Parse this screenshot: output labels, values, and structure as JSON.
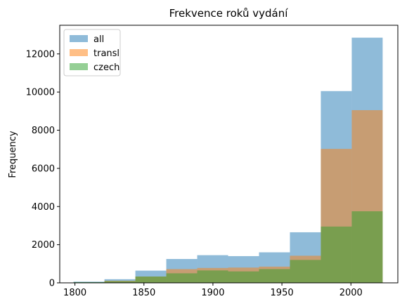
{
  "chart_data": {
    "type": "bar",
    "title": "Frekvence roků vydání",
    "xlabel": "",
    "ylabel": "Frequency",
    "xlim": [
      1789,
      2034
    ],
    "ylim": [
      0,
      13500
    ],
    "xticks": [
      1800,
      1850,
      1900,
      1950,
      2000
    ],
    "yticks": [
      0,
      2000,
      4000,
      6000,
      8000,
      10000,
      12000
    ],
    "bin_edges": [
      1799,
      1821.4,
      1843.8,
      1866.2,
      1888.6,
      1911,
      1933.4,
      1955.8,
      1978.2,
      2000.6,
      2023
    ],
    "series": [
      {
        "name": "all",
        "color": "#1f77b4",
        "alpha": 0.5,
        "values": [
          60,
          190,
          640,
          1250,
          1450,
          1400,
          1600,
          2650,
          10050,
          12850
        ]
      },
      {
        "name": "transl",
        "color": "#ff7f0e",
        "alpha": 0.5,
        "values": [
          20,
          110,
          330,
          720,
          780,
          800,
          850,
          1420,
          7020,
          9050
        ]
      },
      {
        "name": "czech",
        "color": "#2ca02c",
        "alpha": 0.5,
        "values": [
          40,
          90,
          330,
          500,
          650,
          600,
          720,
          1200,
          2950,
          3750
        ]
      }
    ],
    "legend_position": "top-left",
    "grid": false
  }
}
